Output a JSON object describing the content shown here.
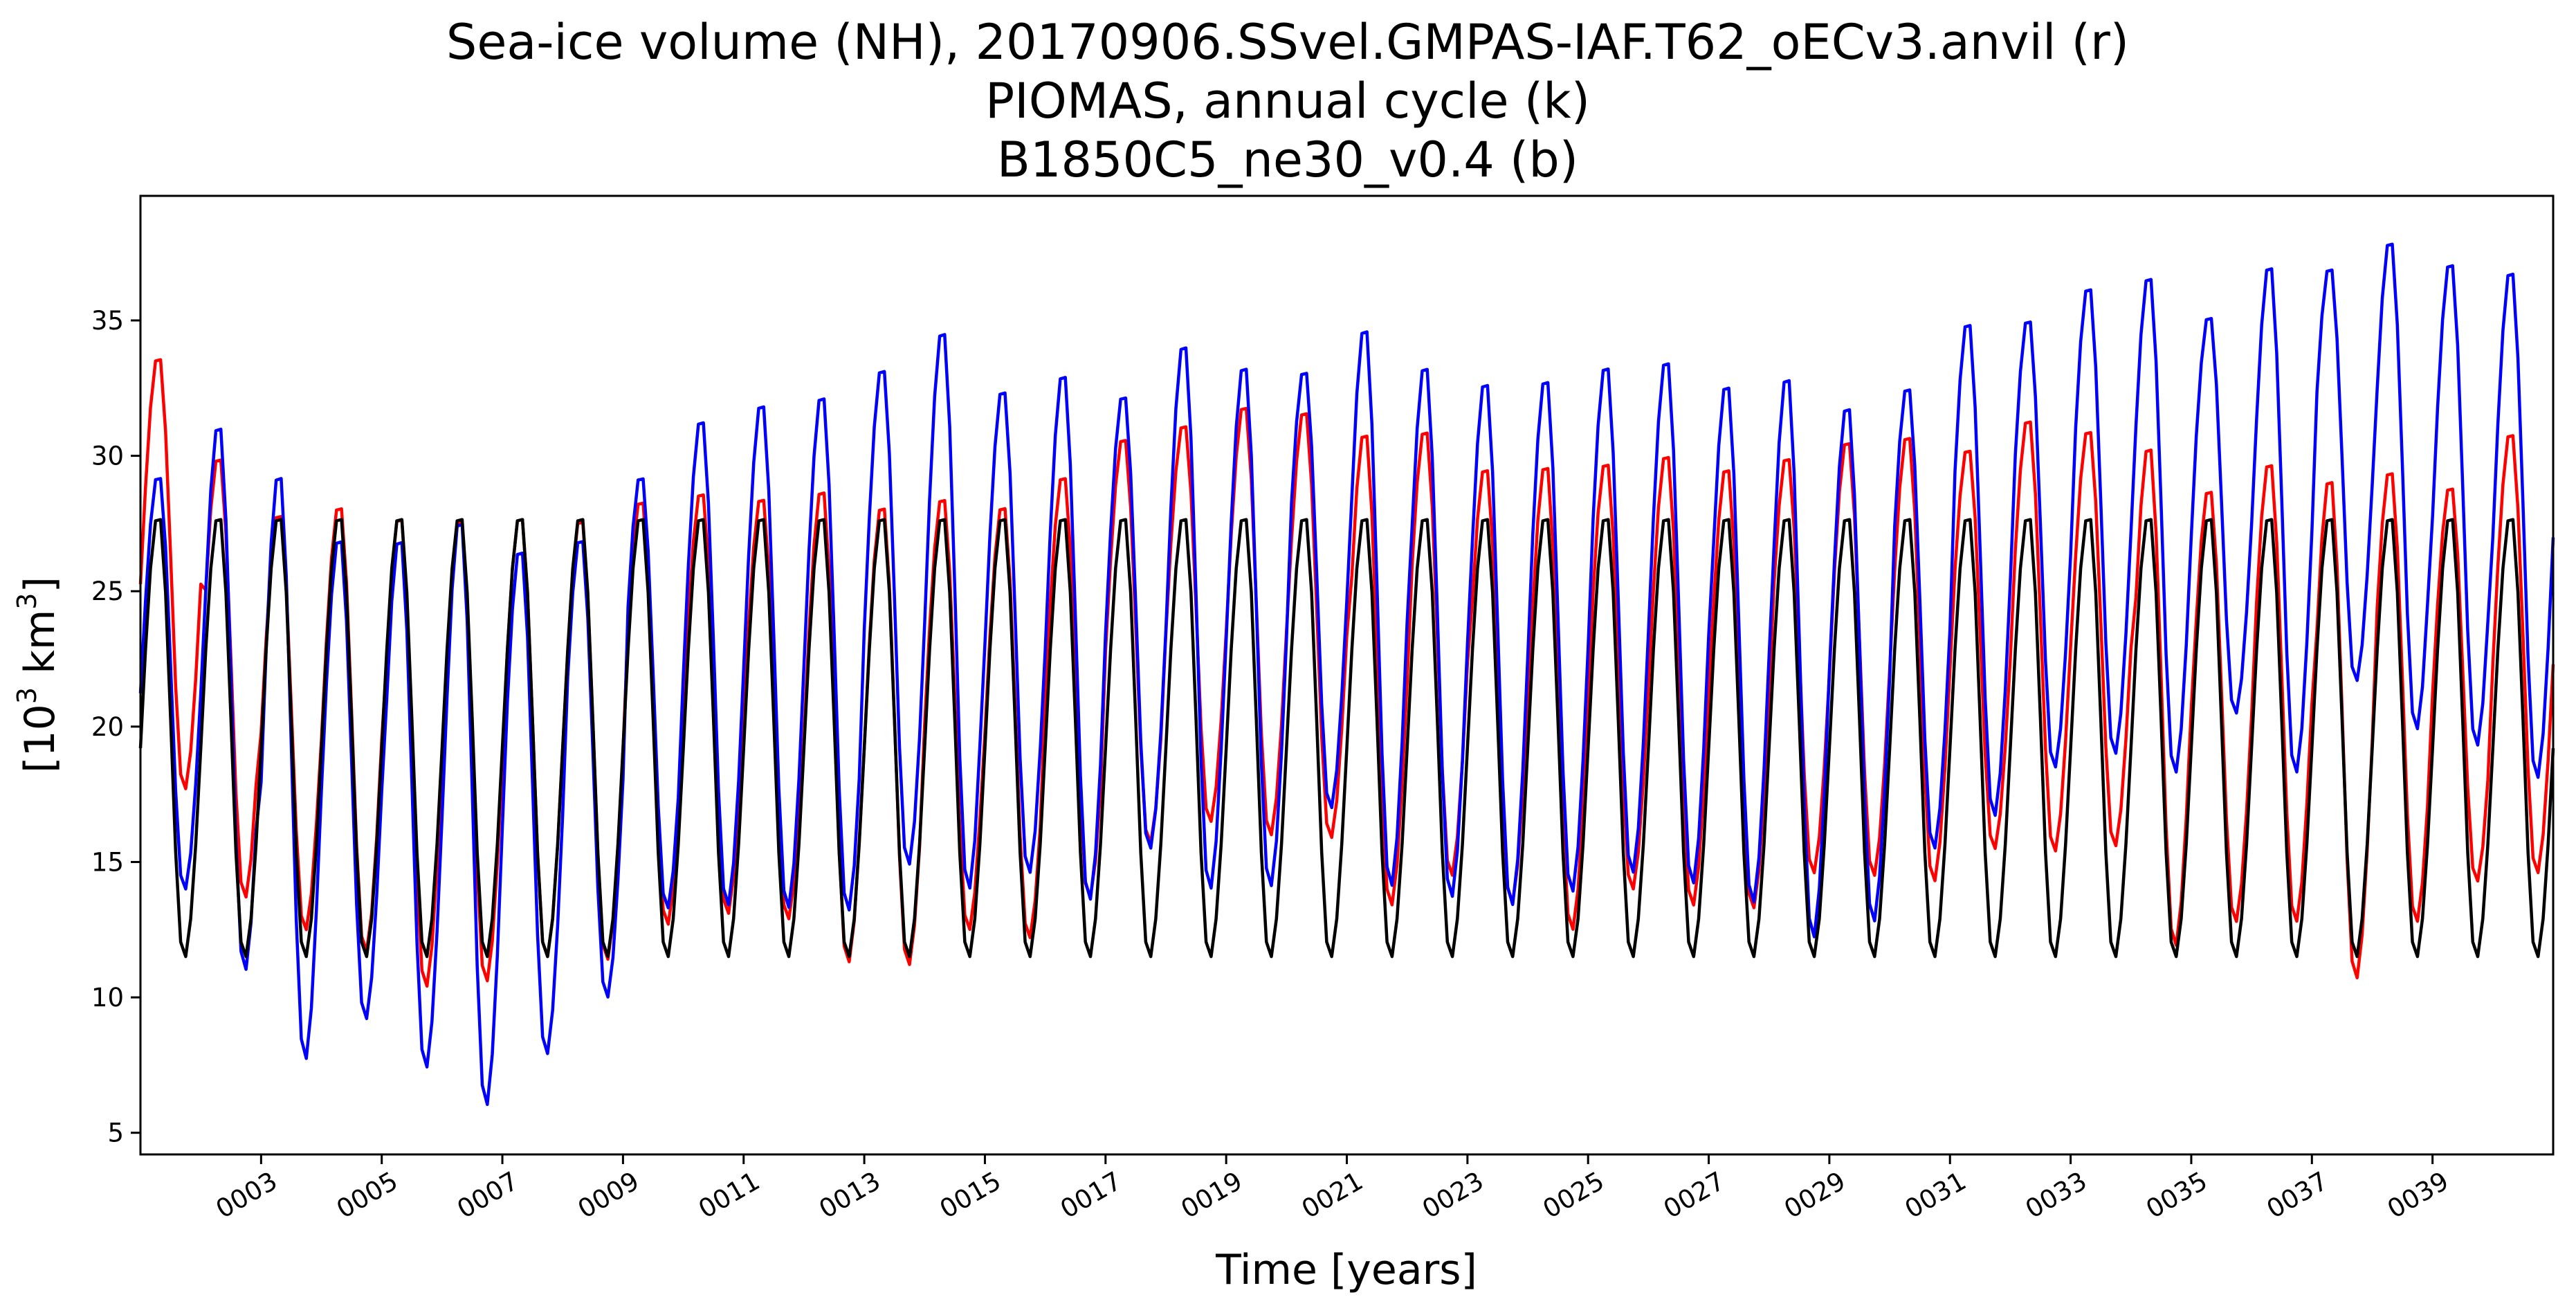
{
  "chart_data": {
    "type": "line",
    "title_lines": [
      "Sea-ice volume (NH), 20170906.SSvel.GMPAS-IAF.T62_oECv3.anvil (r)",
      "PIOMAS, annual cycle (k)",
      "B1850C5_ne30_v0.4 (b)"
    ],
    "xlabel": "Time [years]",
    "ylabel_main": "[10",
    "ylabel_sup1": "3",
    "ylabel_mid": " km",
    "ylabel_sup2": "3",
    "ylabel_end": "]",
    "xlim": [
      1,
      41
    ],
    "ylim": [
      4.2,
      39.6
    ],
    "xticks": [
      3,
      5,
      7,
      9,
      11,
      13,
      15,
      17,
      19,
      21,
      23,
      25,
      27,
      29,
      31,
      33,
      35,
      37,
      39
    ],
    "xtick_labels": [
      "0003",
      "0005",
      "0007",
      "0009",
      "0011",
      "0013",
      "0015",
      "0017",
      "0019",
      "0021",
      "0023",
      "0025",
      "0027",
      "0029",
      "0031",
      "0033",
      "0035",
      "0037",
      "0039"
    ],
    "yticks": [
      5,
      10,
      15,
      20,
      25,
      30,
      35
    ],
    "ytick_labels": [
      "5",
      "10",
      "15",
      "20",
      "25",
      "30",
      "35"
    ],
    "grid": false,
    "series_colors": {
      "model_r": "#ff0000",
      "piomas_k": "#000000",
      "b1850_b": "#0000ff"
    },
    "annual_cycle_k": {
      "max": 27.9,
      "min": 11.4
    },
    "model_r_per_year": {
      "year": [
        1,
        2,
        3,
        4,
        5,
        6,
        7,
        8,
        9,
        10,
        11,
        12,
        13,
        14,
        15,
        16,
        17,
        18,
        19,
        20,
        21,
        22,
        23,
        24,
        25,
        26,
        27,
        28,
        29,
        30,
        31,
        32,
        33,
        34,
        35,
        36,
        37,
        38,
        39,
        40,
        41
      ],
      "max": [
        33.8,
        30.1,
        28.0,
        28.3,
        27.9,
        27.8,
        27.9,
        27.8,
        28.5,
        28.8,
        28.6,
        28.9,
        28.3,
        28.6,
        28.3,
        29.4,
        30.8,
        31.3,
        32.0,
        31.8,
        31.0,
        31.1,
        29.7,
        29.8,
        29.9,
        30.2,
        29.7,
        30.1,
        30.7,
        30.9,
        30.4,
        31.5,
        31.1,
        30.5,
        28.9,
        29.9,
        29.3,
        29.6,
        29.0,
        31.0,
        31.0
      ],
      "min": [
        17.6,
        13.6,
        12.4,
        11.6,
        10.3,
        10.5,
        11.4,
        11.3,
        12.6,
        13.0,
        12.8,
        11.2,
        11.1,
        12.4,
        12.1,
        13.6,
        15.6,
        16.4,
        15.9,
        15.8,
        13.3,
        14.4,
        13.4,
        12.4,
        13.9,
        13.3,
        13.2,
        14.5,
        14.4,
        14.2,
        15.4,
        15.3,
        15.5,
        11.8,
        12.7,
        12.7,
        10.6,
        12.7,
        14.2,
        14.5,
        14.5
      ]
    },
    "b1850_b_per_year": {
      "year": [
        1,
        2,
        3,
        4,
        5,
        6,
        7,
        8,
        9,
        10,
        11,
        12,
        13,
        14,
        15,
        16,
        17,
        18,
        19,
        20,
        21,
        22,
        23,
        24,
        25,
        26,
        27,
        28,
        29,
        30,
        31,
        32,
        33,
        34,
        35,
        36,
        37,
        38,
        39,
        40,
        41
      ],
      "max": [
        29.4,
        31.3,
        29.5,
        27.1,
        27.1,
        27.8,
        26.7,
        27.1,
        29.4,
        31.5,
        32.1,
        32.4,
        33.4,
        34.8,
        32.6,
        33.2,
        32.4,
        34.3,
        33.5,
        33.3,
        34.9,
        33.5,
        32.9,
        33.0,
        33.5,
        33.7,
        32.8,
        33.1,
        32.0,
        32.7,
        35.1,
        35.2,
        36.4,
        36.8,
        35.3,
        37.2,
        37.1,
        38.1,
        37.3,
        37.0,
        37.0
      ],
      "min": [
        13.9,
        10.9,
        7.6,
        9.1,
        7.3,
        5.9,
        7.8,
        9.9,
        13.2,
        13.3,
        13.2,
        13.1,
        14.8,
        13.9,
        14.5,
        13.5,
        15.4,
        13.9,
        14.0,
        16.9,
        14.0,
        13.6,
        13.3,
        13.8,
        14.5,
        14.1,
        13.4,
        12.1,
        12.7,
        15.4,
        16.6,
        18.4,
        18.9,
        18.2,
        20.4,
        18.2,
        21.6,
        19.8,
        19.2,
        18.0,
        18.0
      ]
    }
  }
}
